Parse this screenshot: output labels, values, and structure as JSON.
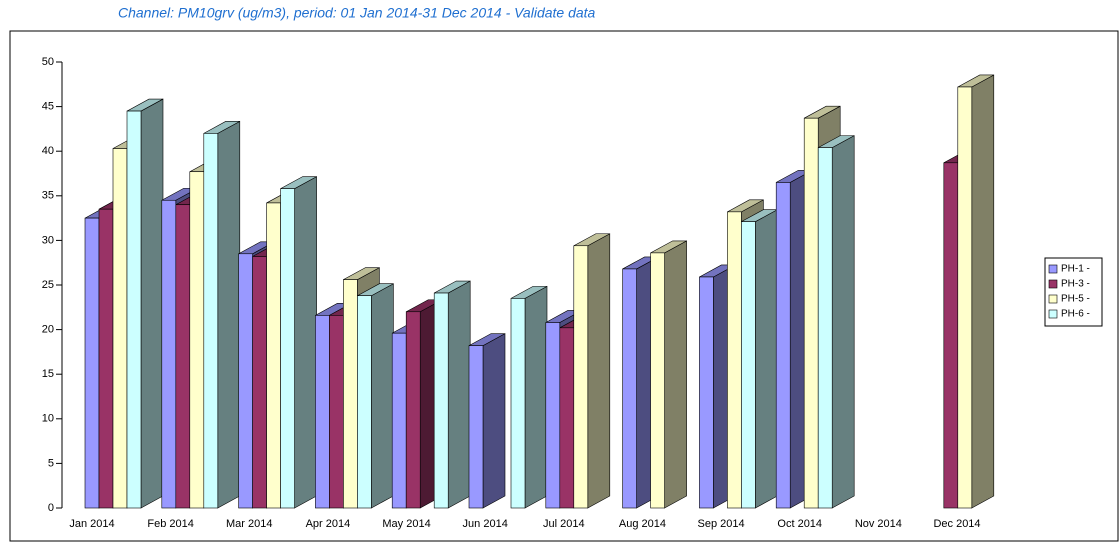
{
  "chart_data": {
    "type": "bar3d",
    "title": "Channel: PM10grv (ug/m3), period: 01 Jan 2014-31 Dec 2014 - Validate data",
    "categories": [
      "Jan 2014",
      "Feb 2014",
      "Mar 2014",
      "Apr 2014",
      "May 2014",
      "Jun 2014",
      "Jul 2014",
      "Aug 2014",
      "Sep 2014",
      "Oct 2014",
      "Nov 2014",
      "Dec 2014"
    ],
    "series": [
      {
        "name": "PH-1 -",
        "color": "#9999ff",
        "values": [
          32.5,
          34.5,
          28.5,
          21.6,
          19.6,
          18.2,
          20.8,
          26.8,
          25.9,
          36.5,
          null,
          null
        ]
      },
      {
        "name": "PH-3 -",
        "color": "#993366",
        "values": [
          33.5,
          34.0,
          28.2,
          21.6,
          22.0,
          null,
          20.2,
          null,
          null,
          null,
          null,
          38.7
        ]
      },
      {
        "name": "PH-5 -",
        "color": "#ffffcc",
        "values": [
          40.3,
          37.7,
          34.2,
          25.6,
          null,
          null,
          29.4,
          28.6,
          33.2,
          43.7,
          null,
          47.2
        ]
      },
      {
        "name": "PH-6 -",
        "color": "#ccffff",
        "values": [
          44.5,
          42.0,
          35.8,
          23.8,
          24.1,
          23.5,
          null,
          null,
          32.1,
          40.4,
          null,
          null
        ]
      }
    ],
    "ylim": [
      0,
      50
    ],
    "yticks": [
      0,
      5,
      10,
      15,
      20,
      25,
      30,
      35,
      40,
      45,
      50
    ],
    "legend": "right"
  }
}
